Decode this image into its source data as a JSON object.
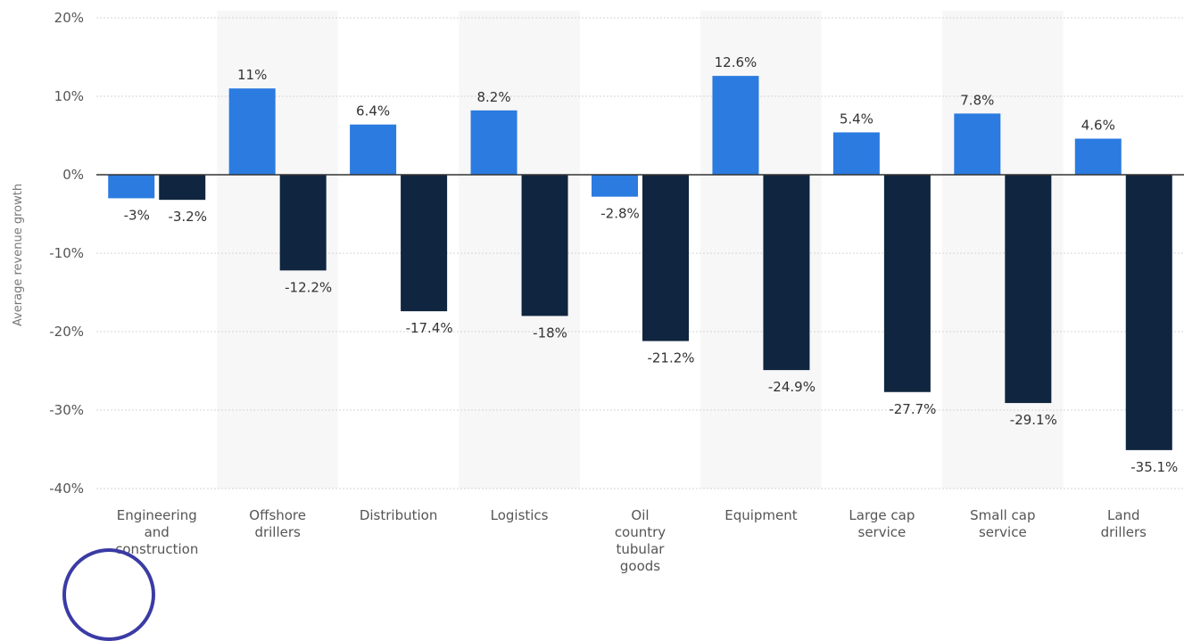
{
  "chart_data": {
    "type": "bar",
    "ylabel": "Average revenue growth",
    "xlabel": "",
    "ylim": [
      -40,
      20
    ],
    "yticks": [
      20,
      10,
      0,
      -10,
      -20,
      -30,
      -40
    ],
    "ytick_labels": [
      "20%",
      "10%",
      "0%",
      "-10%",
      "-20%",
      "-30%",
      "-40%"
    ],
    "grid": true,
    "legend": "none",
    "categories": [
      [
        "Engineering",
        "and",
        "construction"
      ],
      [
        "Offshore",
        "drillers"
      ],
      [
        "Distribution"
      ],
      [
        "Logistics"
      ],
      [
        "Oil",
        "country",
        "tubular",
        "goods"
      ],
      [
        "Equipment"
      ],
      [
        "Large cap",
        "service"
      ],
      [
        "Small cap",
        "service"
      ],
      [
        "Land",
        "drillers"
      ]
    ],
    "series": [
      {
        "color": "#2b7be0",
        "values": [
          -3,
          11,
          6.4,
          8.2,
          -2.8,
          12.6,
          5.4,
          7.8,
          4.6
        ],
        "labels": [
          "-3%",
          "11%",
          "6.4%",
          "8.2%",
          "-2.8%",
          "12.6%",
          "5.4%",
          "7.8%",
          "4.6%"
        ]
      },
      {
        "color": "#10253f",
        "values": [
          -3.2,
          -12.2,
          -17.4,
          -18,
          -21.2,
          -24.9,
          -27.7,
          -29.1,
          -35.1
        ],
        "labels": [
          "-3.2%",
          "-12.2%",
          "-17.4%",
          "-18%",
          "-21.2%",
          "-24.9%",
          "-27.7%",
          "-29.1%",
          "-35.1%"
        ]
      }
    ]
  }
}
